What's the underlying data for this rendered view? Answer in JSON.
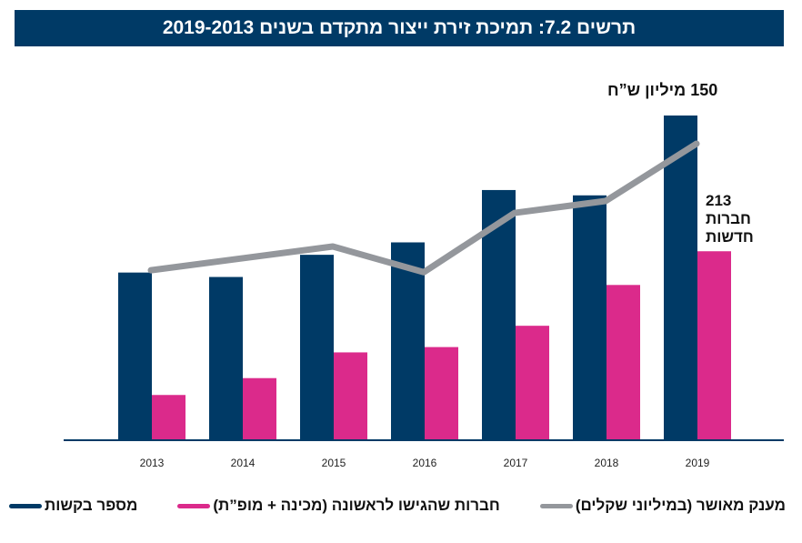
{
  "title": "תרשים 7.2: תמיכת זירת ייצור מתקדם בשנים 2019-2013",
  "annotations": {
    "grant_2019": "150 מיליון ש”ח",
    "companies_number": "213",
    "companies_line1": "חברות",
    "companies_line2": "חדשות"
  },
  "colors": {
    "requests": "#003a66",
    "companies": "#db2a8b",
    "grant": "#94979c",
    "title_bg": "#003a66"
  },
  "chart_data": {
    "type": "bar+line",
    "title": "תרשים 7.2: תמיכת זירת ייצור מתקדם בשנים 2019-2013",
    "categories": [
      "2013",
      "2014",
      "2015",
      "2016",
      "2017",
      "2018",
      "2019"
    ],
    "series": [
      {
        "name": "מספר בקשות",
        "type": "bar",
        "color": "#003a66",
        "values": [
          189,
          184,
          209,
          223,
          282,
          276,
          366
        ]
      },
      {
        "name": "חברות שהגישו לראשונה (מכינה + מופ”ת)",
        "type": "bar",
        "color": "#db2a8b",
        "values": [
          51,
          70,
          99,
          105,
          129,
          175,
          213
        ]
      },
      {
        "name": "מענק מאושר (במיליוני שקלים)",
        "type": "line",
        "color": "#94979c",
        "values": [
          86,
          92,
          98,
          85,
          115,
          121,
          150
        ]
      }
    ],
    "y_axis_shown": false,
    "grid": false,
    "legend_position": "bottom"
  }
}
